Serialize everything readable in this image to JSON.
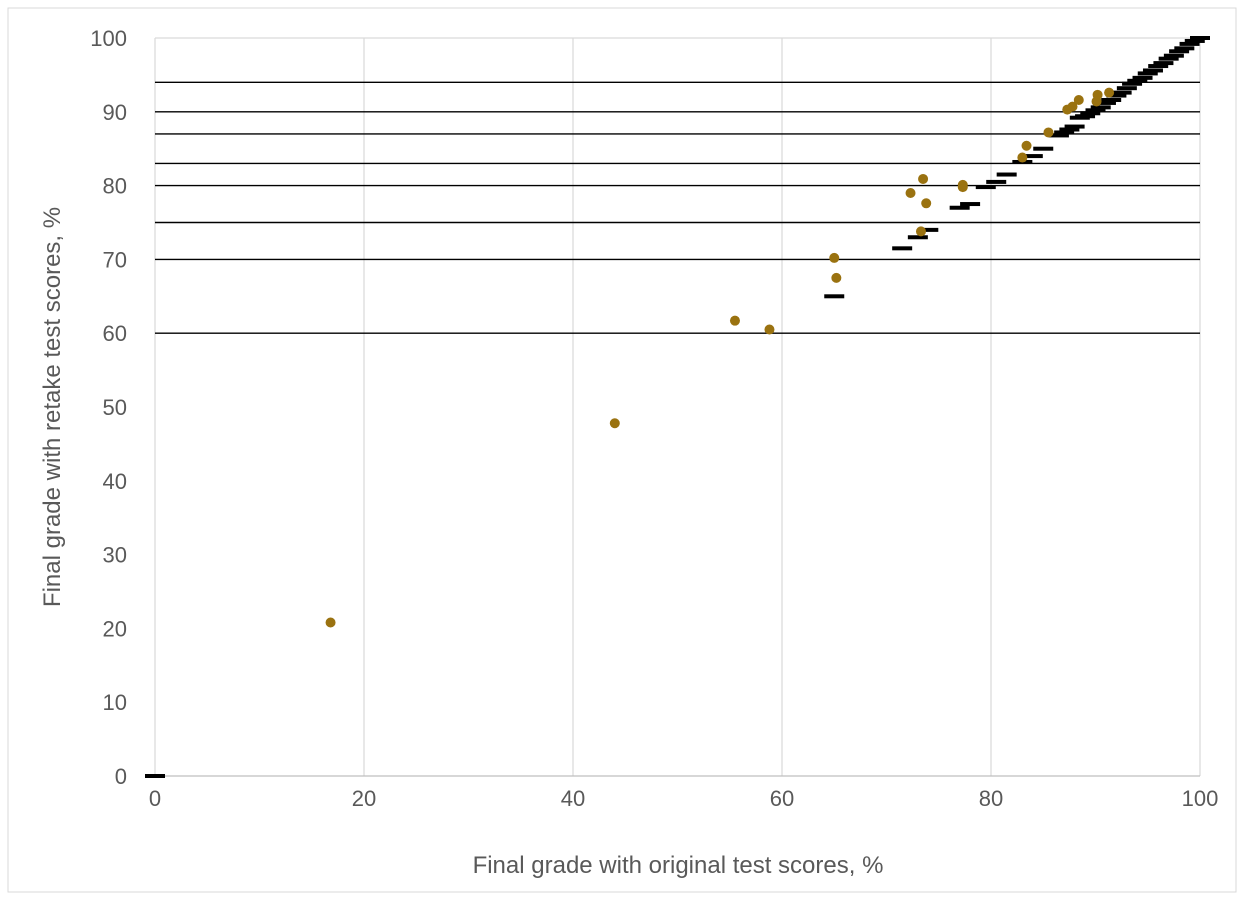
{
  "chart_data": {
    "type": "scatter",
    "title": "",
    "xlabel": "Final grade with original test scores, %",
    "ylabel": "Final grade with retake test scores, %",
    "xlim": [
      0,
      100
    ],
    "ylim": [
      0,
      100
    ],
    "x_ticks": [
      "0",
      "20",
      "40",
      "60",
      "80",
      "100"
    ],
    "y_ticks": [
      "0",
      "10",
      "20",
      "30",
      "40",
      "50",
      "60",
      "70",
      "80",
      "90",
      "100"
    ],
    "grid": "vertical major gridlines",
    "legend": "none",
    "grade_cutoffs": [
      60,
      70,
      75,
      80,
      83,
      87,
      90,
      94
    ],
    "series": [
      {
        "marker": "dash",
        "color": "#000000",
        "points": [
          {
            "x": 0,
            "y": 0
          },
          {
            "x": 65,
            "y": 65
          },
          {
            "x": 71.5,
            "y": 71.5
          },
          {
            "x": 73,
            "y": 73
          },
          {
            "x": 74,
            "y": 74
          },
          {
            "x": 77,
            "y": 77
          },
          {
            "x": 78,
            "y": 77.5
          },
          {
            "x": 79.5,
            "y": 79.8
          },
          {
            "x": 80.5,
            "y": 80.5
          },
          {
            "x": 81.5,
            "y": 81.5
          },
          {
            "x": 83,
            "y": 83.2
          },
          {
            "x": 84,
            "y": 84
          },
          {
            "x": 85,
            "y": 85
          },
          {
            "x": 86.5,
            "y": 86.8
          },
          {
            "x": 87,
            "y": 87.2
          },
          {
            "x": 87.5,
            "y": 87.6
          },
          {
            "x": 88,
            "y": 88
          },
          {
            "x": 88.5,
            "y": 89.2
          },
          {
            "x": 89,
            "y": 89.4
          },
          {
            "x": 89.5,
            "y": 89.8
          },
          {
            "x": 90,
            "y": 90.2
          },
          {
            "x": 90.5,
            "y": 90.6
          },
          {
            "x": 91,
            "y": 91.2
          },
          {
            "x": 91.5,
            "y": 91.6
          },
          {
            "x": 92,
            "y": 92.2
          },
          {
            "x": 92.5,
            "y": 92.6
          },
          {
            "x": 93,
            "y": 93.2
          },
          {
            "x": 93.5,
            "y": 93.8
          },
          {
            "x": 94,
            "y": 94.2
          },
          {
            "x": 94.5,
            "y": 94.6
          },
          {
            "x": 95,
            "y": 95.2
          },
          {
            "x": 95.5,
            "y": 95.6
          },
          {
            "x": 96,
            "y": 96.2
          },
          {
            "x": 96.5,
            "y": 96.6
          },
          {
            "x": 97,
            "y": 97.2
          },
          {
            "x": 97.5,
            "y": 97.6
          },
          {
            "x": 98,
            "y": 98.2
          },
          {
            "x": 98.5,
            "y": 98.6
          },
          {
            "x": 99,
            "y": 99.2
          },
          {
            "x": 99.5,
            "y": 99.6
          },
          {
            "x": 100,
            "y": 100
          }
        ]
      },
      {
        "marker": "circle",
        "color": "#9a7210",
        "points": [
          {
            "x": 16.8,
            "y": 20.8
          },
          {
            "x": 44,
            "y": 47.8
          },
          {
            "x": 55.5,
            "y": 61.7
          },
          {
            "x": 58.8,
            "y": 60.5
          },
          {
            "x": 65,
            "y": 70.2
          },
          {
            "x": 65.2,
            "y": 67.5
          },
          {
            "x": 72.3,
            "y": 79
          },
          {
            "x": 73.5,
            "y": 80.9
          },
          {
            "x": 73.8,
            "y": 77.6
          },
          {
            "x": 73.3,
            "y": 73.8
          },
          {
            "x": 77.3,
            "y": 79.8
          },
          {
            "x": 77.3,
            "y": 80.1
          },
          {
            "x": 83,
            "y": 83.8
          },
          {
            "x": 83.4,
            "y": 85.4
          },
          {
            "x": 85.5,
            "y": 87.2
          },
          {
            "x": 87.3,
            "y": 90.3
          },
          {
            "x": 87.8,
            "y": 90.7
          },
          {
            "x": 88.4,
            "y": 91.6
          },
          {
            "x": 90.1,
            "y": 91.4
          },
          {
            "x": 90.2,
            "y": 92.3
          },
          {
            "x": 91.3,
            "y": 92.6
          }
        ]
      }
    ]
  }
}
